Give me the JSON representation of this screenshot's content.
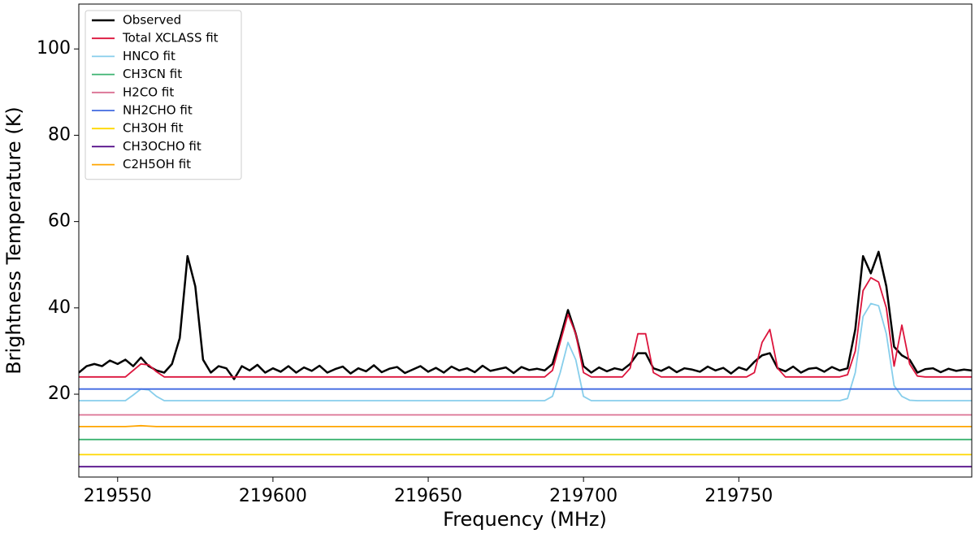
{
  "chart_data": {
    "type": "line",
    "xlabel": "Frequency (MHz)",
    "ylabel": "Brightness Temperature (K)",
    "xlim": [
      219537.5,
      219825
    ],
    "ylim": [
      0.8,
      110.4
    ],
    "xticks": [
      219550,
      219600,
      219650,
      219700,
      219750
    ],
    "yticks": [
      20,
      40,
      60,
      80,
      100
    ],
    "legend": "upper left",
    "x": [
      219537.5,
      219540,
      219542.5,
      219545,
      219547.5,
      219550,
      219552.5,
      219555,
      219557.5,
      219560,
      219562.5,
      219565,
      219567.5,
      219570,
      219572.5,
      219575,
      219577.5,
      219580,
      219582.5,
      219585,
      219587.5,
      219590,
      219592.5,
      219595,
      219597.5,
      219600,
      219602.5,
      219605,
      219607.5,
      219610,
      219612.5,
      219615,
      219617.5,
      219620,
      219622.5,
      219625,
      219627.5,
      219630,
      219632.5,
      219635,
      219637.5,
      219640,
      219642.5,
      219645,
      219647.5,
      219650,
      219652.5,
      219655,
      219657.5,
      219660,
      219662.5,
      219665,
      219667.5,
      219670,
      219672.5,
      219675,
      219677.5,
      219680,
      219682.5,
      219685,
      219687.5,
      219690,
      219692.5,
      219695,
      219697.5,
      219700,
      219702.5,
      219705,
      219707.5,
      219710,
      219712.5,
      219715,
      219717.5,
      219720,
      219722.5,
      219725,
      219727.5,
      219730,
      219732.5,
      219735,
      219737.5,
      219740,
      219742.5,
      219745,
      219747.5,
      219750,
      219752.5,
      219755,
      219757.5,
      219760,
      219762.5,
      219765,
      219767.5,
      219770,
      219772.5,
      219775,
      219777.5,
      219780,
      219782.5,
      219785,
      219787.5,
      219790,
      219792.5,
      219795,
      219797.5,
      219800,
      219802.5,
      219805,
      219807.5,
      219810,
      219812.5,
      219815,
      219817.5,
      219820,
      219822.5,
      219825
    ],
    "series": [
      {
        "name": "Observed",
        "color": "#000000",
        "width": 2.5,
        "values": [
          25,
          26.5,
          27,
          26.5,
          27.8,
          27,
          28,
          26.5,
          28.5,
          26.5,
          25.5,
          25,
          27,
          33,
          52,
          45,
          28,
          25,
          26.5,
          26,
          23.5,
          26.5,
          25.5,
          26.8,
          25,
          26,
          25.2,
          26.5,
          25,
          26.2,
          25.4,
          26.6,
          25,
          25.8,
          26.4,
          24.8,
          26,
          25.3,
          26.7,
          25.1,
          25.9,
          26.3,
          24.9,
          25.7,
          26.5,
          25.2,
          26.1,
          25,
          26.4,
          25.5,
          26,
          25.1,
          26.6,
          25.4,
          25.8,
          26.2,
          24.9,
          26.3,
          25.6,
          25.9,
          25.5,
          27,
          33,
          39.5,
          34,
          26.5,
          25,
          26.2,
          25.3,
          26,
          25.6,
          27,
          29.5,
          29.5,
          26,
          25.4,
          26.3,
          25.1,
          26,
          25.7,
          25.2,
          26.4,
          25.5,
          26.1,
          24.8,
          26.2,
          25.6,
          27.5,
          29,
          29.5,
          26,
          25.3,
          26.4,
          25,
          25.9,
          26.1,
          25.2,
          26.3,
          25.5,
          26,
          35,
          52,
          48,
          53,
          45,
          31,
          29,
          28,
          25,
          25.8,
          26,
          25.1,
          25.9,
          25.4,
          25.7,
          25.5
        ]
      },
      {
        "name": "Total XCLASS fit",
        "color": "#dc143c",
        "width": 1.8,
        "values": [
          24,
          24,
          24,
          24,
          24,
          24,
          24,
          25.5,
          27,
          26.8,
          25.2,
          24,
          24,
          24,
          24,
          24,
          24,
          24,
          24,
          24,
          24,
          24,
          24,
          24,
          24,
          24,
          24,
          24,
          24,
          24,
          24,
          24,
          24,
          24,
          24,
          24,
          24,
          24,
          24,
          24,
          24,
          24,
          24,
          24,
          24,
          24,
          24,
          24,
          24,
          24,
          24,
          24,
          24,
          24,
          24,
          24,
          24,
          24,
          24,
          24,
          24,
          25.5,
          32,
          38.5,
          34,
          25,
          24,
          24,
          24,
          24,
          24,
          26,
          34,
          34,
          25,
          24,
          24,
          24,
          24,
          24,
          24,
          24,
          24,
          24,
          24,
          24,
          24,
          25,
          32,
          35,
          26,
          24,
          24,
          24,
          24,
          24,
          24,
          24,
          24,
          24.5,
          30,
          44,
          47,
          46,
          40,
          26.5,
          36,
          27,
          24.2,
          24,
          24,
          24,
          24,
          24,
          24,
          24
        ]
      },
      {
        "name": "HNCO fit",
        "color": "#87ceeb",
        "width": 1.8,
        "values": [
          18.5,
          18.5,
          18.5,
          18.5,
          18.5,
          18.5,
          18.5,
          19.8,
          21.2,
          21,
          19.5,
          18.5,
          18.5,
          18.5,
          18.5,
          18.5,
          18.5,
          18.5,
          18.5,
          18.5,
          18.5,
          18.5,
          18.5,
          18.5,
          18.5,
          18.5,
          18.5,
          18.5,
          18.5,
          18.5,
          18.5,
          18.5,
          18.5,
          18.5,
          18.5,
          18.5,
          18.5,
          18.5,
          18.5,
          18.5,
          18.5,
          18.5,
          18.5,
          18.5,
          18.5,
          18.5,
          18.5,
          18.5,
          18.5,
          18.5,
          18.5,
          18.5,
          18.5,
          18.5,
          18.5,
          18.5,
          18.5,
          18.5,
          18.5,
          18.5,
          18.5,
          19.5,
          25,
          32,
          28,
          19.5,
          18.5,
          18.5,
          18.5,
          18.5,
          18.5,
          18.5,
          18.5,
          18.5,
          18.5,
          18.5,
          18.5,
          18.5,
          18.5,
          18.5,
          18.5,
          18.5,
          18.5,
          18.5,
          18.5,
          18.5,
          18.5,
          18.5,
          18.5,
          18.5,
          18.5,
          18.5,
          18.5,
          18.5,
          18.5,
          18.5,
          18.5,
          18.5,
          18.5,
          19,
          25,
          38,
          41,
          40.5,
          34,
          22,
          19.5,
          18.6,
          18.5,
          18.5,
          18.5,
          18.5,
          18.5,
          18.5,
          18.5,
          18.5
        ]
      },
      {
        "name": "CH3CN fit",
        "color": "#3cb371",
        "width": 1.8,
        "values": [
          9.5,
          9.5,
          9.5,
          9.5,
          9.5,
          9.5,
          9.5,
          9.5,
          9.5,
          9.5,
          9.5,
          9.5,
          9.5,
          9.5,
          9.5,
          9.5,
          9.5,
          9.5,
          9.5,
          9.5,
          9.5,
          9.5,
          9.5,
          9.5,
          9.5,
          9.5,
          9.5,
          9.5,
          9.5,
          9.5,
          9.5,
          9.5,
          9.5,
          9.5,
          9.5,
          9.5,
          9.5,
          9.5,
          9.5,
          9.5,
          9.5,
          9.5,
          9.5,
          9.5,
          9.5,
          9.5,
          9.5,
          9.5,
          9.5,
          9.5,
          9.5,
          9.5,
          9.5,
          9.5,
          9.5,
          9.5,
          9.5,
          9.5,
          9.5,
          9.5,
          9.5,
          9.5,
          9.5,
          9.5,
          9.5,
          9.5,
          9.5,
          9.5,
          9.5,
          9.5,
          9.5,
          9.5,
          9.5,
          9.5,
          9.5,
          9.5,
          9.5,
          9.5,
          9.5,
          9.5,
          9.5,
          9.5,
          9.5,
          9.5,
          9.5,
          9.5,
          9.5,
          9.5,
          9.5,
          9.5,
          9.5,
          9.5,
          9.5,
          9.5,
          9.5,
          9.5,
          9.5,
          9.5,
          9.5,
          9.5,
          9.5,
          9.5,
          9.5,
          9.5,
          9.5,
          9.5,
          9.5,
          9.5,
          9.5,
          9.5,
          9.5,
          9.5,
          9.5,
          9.5,
          9.5,
          9.5
        ]
      },
      {
        "name": "H2CO fit",
        "color": "#db7093",
        "width": 1.8,
        "values": [
          15.2,
          15.2,
          15.2,
          15.2,
          15.2,
          15.2,
          15.2,
          15.2,
          15.2,
          15.2,
          15.2,
          15.2,
          15.2,
          15.2,
          15.2,
          15.2,
          15.2,
          15.2,
          15.2,
          15.2,
          15.2,
          15.2,
          15.2,
          15.2,
          15.2,
          15.2,
          15.2,
          15.2,
          15.2,
          15.2,
          15.2,
          15.2,
          15.2,
          15.2,
          15.2,
          15.2,
          15.2,
          15.2,
          15.2,
          15.2,
          15.2,
          15.2,
          15.2,
          15.2,
          15.2,
          15.2,
          15.2,
          15.2,
          15.2,
          15.2,
          15.2,
          15.2,
          15.2,
          15.2,
          15.2,
          15.2,
          15.2,
          15.2,
          15.2,
          15.2,
          15.2,
          15.2,
          15.2,
          15.2,
          15.2,
          15.2,
          15.2,
          15.2,
          15.2,
          15.2,
          15.2,
          15.2,
          15.2,
          15.2,
          15.2,
          15.2,
          15.2,
          15.2,
          15.2,
          15.2,
          15.2,
          15.2,
          15.2,
          15.2,
          15.2,
          15.2,
          15.2,
          15.2,
          15.2,
          15.2,
          15.2,
          15.2,
          15.2,
          15.2,
          15.2,
          15.2,
          15.2,
          15.2,
          15.2,
          15.2,
          15.2,
          15.2,
          15.2,
          15.2,
          15.2,
          15.2,
          15.2,
          15.2,
          15.2,
          15.2,
          15.2,
          15.2,
          15.2,
          15.2,
          15.2,
          15.2
        ]
      },
      {
        "name": "NH2CHO fit",
        "color": "#4169e1",
        "width": 1.8,
        "values": [
          21.2,
          21.2,
          21.2,
          21.2,
          21.2,
          21.2,
          21.2,
          21.2,
          21.2,
          21.2,
          21.2,
          21.2,
          21.2,
          21.2,
          21.2,
          21.2,
          21.2,
          21.2,
          21.2,
          21.2,
          21.2,
          21.2,
          21.2,
          21.2,
          21.2,
          21.2,
          21.2,
          21.2,
          21.2,
          21.2,
          21.2,
          21.2,
          21.2,
          21.2,
          21.2,
          21.2,
          21.2,
          21.2,
          21.2,
          21.2,
          21.2,
          21.2,
          21.2,
          21.2,
          21.2,
          21.2,
          21.2,
          21.2,
          21.2,
          21.2,
          21.2,
          21.2,
          21.2,
          21.2,
          21.2,
          21.2,
          21.2,
          21.2,
          21.2,
          21.2,
          21.2,
          21.2,
          21.2,
          21.2,
          21.2,
          21.2,
          21.2,
          21.2,
          21.2,
          21.2,
          21.2,
          21.2,
          21.2,
          21.2,
          21.2,
          21.2,
          21.2,
          21.2,
          21.2,
          21.2,
          21.2,
          21.2,
          21.2,
          21.2,
          21.2,
          21.2,
          21.2,
          21.2,
          21.2,
          21.2,
          21.2,
          21.2,
          21.2,
          21.2,
          21.2,
          21.2,
          21.2,
          21.2,
          21.2,
          21.2,
          21.2,
          21.2,
          21.2,
          21.2,
          21.2,
          21.2,
          21.2,
          21.2,
          21.2,
          21.2,
          21.2,
          21.2,
          21.2,
          21.2,
          21.2,
          21.2
        ]
      },
      {
        "name": "CH3OH fit",
        "color": "#ffd700",
        "width": 1.8,
        "values": [
          6,
          6,
          6,
          6,
          6,
          6,
          6,
          6,
          6,
          6,
          6,
          6,
          6,
          6,
          6,
          6,
          6,
          6,
          6,
          6,
          6,
          6,
          6,
          6,
          6,
          6,
          6,
          6,
          6,
          6,
          6,
          6,
          6,
          6,
          6,
          6,
          6,
          6,
          6,
          6,
          6,
          6,
          6,
          6,
          6,
          6,
          6,
          6,
          6,
          6,
          6,
          6,
          6,
          6,
          6,
          6,
          6,
          6,
          6,
          6,
          6,
          6,
          6,
          6,
          6,
          6,
          6,
          6,
          6,
          6,
          6,
          6,
          6,
          6,
          6,
          6,
          6,
          6,
          6,
          6,
          6,
          6,
          6,
          6,
          6,
          6,
          6,
          6,
          6,
          6,
          6,
          6,
          6,
          6,
          6,
          6,
          6,
          6,
          6,
          6,
          6,
          6,
          6,
          6,
          6,
          6,
          6,
          6,
          6,
          6,
          6,
          6,
          6,
          6,
          6,
          6
        ]
      },
      {
        "name": "CH3OCHO fit",
        "color": "#4b0082",
        "width": 1.8,
        "values": [
          3.2,
          3.2,
          3.2,
          3.2,
          3.2,
          3.2,
          3.2,
          3.2,
          3.2,
          3.2,
          3.2,
          3.2,
          3.2,
          3.2,
          3.2,
          3.2,
          3.2,
          3.2,
          3.2,
          3.2,
          3.2,
          3.2,
          3.2,
          3.2,
          3.2,
          3.2,
          3.2,
          3.2,
          3.2,
          3.2,
          3.2,
          3.2,
          3.2,
          3.2,
          3.2,
          3.2,
          3.2,
          3.2,
          3.2,
          3.2,
          3.2,
          3.2,
          3.2,
          3.2,
          3.2,
          3.2,
          3.2,
          3.2,
          3.2,
          3.2,
          3.2,
          3.2,
          3.2,
          3.2,
          3.2,
          3.2,
          3.2,
          3.2,
          3.2,
          3.2,
          3.2,
          3.2,
          3.2,
          3.2,
          3.2,
          3.2,
          3.2,
          3.2,
          3.2,
          3.2,
          3.2,
          3.2,
          3.2,
          3.2,
          3.2,
          3.2,
          3.2,
          3.2,
          3.2,
          3.2,
          3.2,
          3.2,
          3.2,
          3.2,
          3.2,
          3.2,
          3.2,
          3.2,
          3.2,
          3.2,
          3.2,
          3.2,
          3.2,
          3.2,
          3.2,
          3.2,
          3.2,
          3.2,
          3.2,
          3.2,
          3.2,
          3.2,
          3.2,
          3.2,
          3.2,
          3.2,
          3.2,
          3.2,
          3.2,
          3.2,
          3.2,
          3.2,
          3.2,
          3.2,
          3.2,
          3.2
        ]
      },
      {
        "name": "C2H5OH fit",
        "color": "#ffa500",
        "width": 1.8,
        "values": [
          12.5,
          12.5,
          12.5,
          12.5,
          12.5,
          12.5,
          12.5,
          12.6,
          12.7,
          12.6,
          12.5,
          12.5,
          12.5,
          12.5,
          12.5,
          12.5,
          12.5,
          12.5,
          12.5,
          12.5,
          12.5,
          12.5,
          12.5,
          12.5,
          12.5,
          12.5,
          12.5,
          12.5,
          12.5,
          12.5,
          12.5,
          12.5,
          12.5,
          12.5,
          12.5,
          12.5,
          12.5,
          12.5,
          12.5,
          12.5,
          12.5,
          12.5,
          12.5,
          12.5,
          12.5,
          12.5,
          12.5,
          12.5,
          12.5,
          12.5,
          12.5,
          12.5,
          12.5,
          12.5,
          12.5,
          12.5,
          12.5,
          12.5,
          12.5,
          12.5,
          12.5,
          12.5,
          12.5,
          12.5,
          12.5,
          12.5,
          12.5,
          12.5,
          12.5,
          12.5,
          12.5,
          12.5,
          12.5,
          12.5,
          12.5,
          12.5,
          12.5,
          12.5,
          12.5,
          12.5,
          12.5,
          12.5,
          12.5,
          12.5,
          12.5,
          12.5,
          12.5,
          12.5,
          12.5,
          12.5,
          12.5,
          12.5,
          12.5,
          12.5,
          12.5,
          12.5,
          12.5,
          12.5,
          12.5,
          12.5,
          12.5,
          12.5,
          12.5,
          12.5,
          12.5,
          12.5,
          12.5,
          12.5,
          12.5,
          12.5,
          12.5,
          12.5,
          12.5,
          12.5,
          12.5,
          12.5
        ]
      }
    ]
  }
}
